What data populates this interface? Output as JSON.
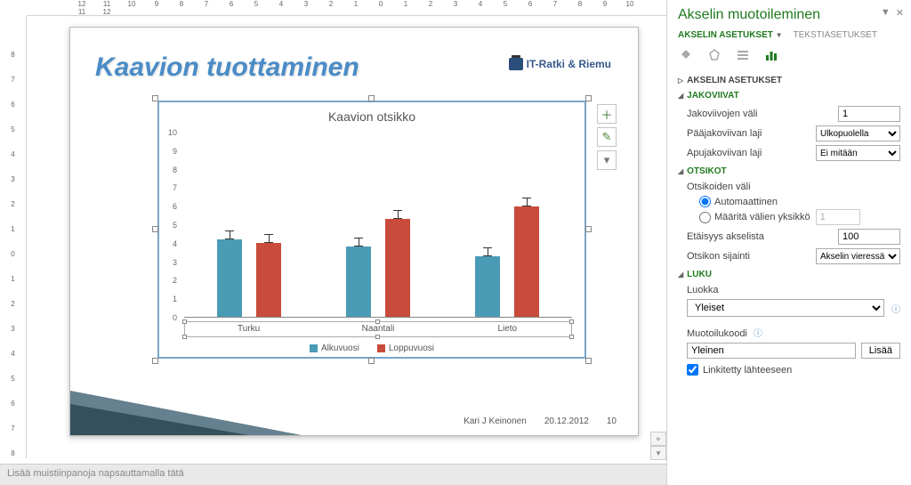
{
  "ruler_h": [
    "12",
    "11",
    "10",
    "9",
    "8",
    "7",
    "6",
    "5",
    "4",
    "3",
    "2",
    "1",
    "0",
    "1",
    "2",
    "3",
    "4",
    "5",
    "6",
    "7",
    "8",
    "9",
    "10",
    "11",
    "12"
  ],
  "ruler_v": [
    "8",
    "7",
    "6",
    "5",
    "4",
    "3",
    "2",
    "1",
    "0",
    "1",
    "2",
    "3",
    "4",
    "5",
    "6",
    "7",
    "8"
  ],
  "slide": {
    "title": "Kaavion tuottaminen",
    "brand": "IT-Ratki & Riemu",
    "footer_author": "Kari J Keinonen",
    "footer_date": "20.12.2012",
    "footer_page": "10"
  },
  "chart": {
    "title": "Kaavion otsikko",
    "ymax": 10,
    "yticks": [
      "10",
      "9",
      "8",
      "7",
      "6",
      "5",
      "4",
      "3",
      "2",
      "1",
      "0"
    ],
    "categories": [
      "Turku",
      "Naantali",
      "Lieto"
    ],
    "series": [
      {
        "name": "Alkuvuosi",
        "color": "#4a9bb5",
        "values": [
          4.2,
          3.8,
          3.3
        ]
      },
      {
        "name": "Loppuvuosi",
        "color": "#c84b3b",
        "values": [
          4.0,
          5.3,
          6.0
        ]
      }
    ],
    "legend_labels": [
      "Alkuvuosi",
      "Loppuvuosi"
    ]
  },
  "notes_placeholder": "Lisää muistiinpanoja napsauttamalla tätä",
  "sidebar": {
    "title": "Akselin muotoileminen",
    "tab_axis": "AKSELIN ASETUKSET",
    "tab_text": "TEKSTIASETUKSET",
    "sec_axis_options": "AKSELIN ASETUKSET",
    "sec_gridlines": "JAKOVIIVAT",
    "gridline_interval_label": "Jakoviivojen väli",
    "gridline_interval_value": "1",
    "major_tick_label": "Pääjakoviivan laji",
    "major_tick_value": "Ulkopuolella",
    "minor_tick_label": "Apujakoviivan laji",
    "minor_tick_value": "Ei mitään",
    "sec_labels": "OTSIKOT",
    "label_interval": "Otsikoiden väli",
    "radio_auto": "Automaattinen",
    "radio_spec": "Määritä välien yksikkö",
    "spec_value": "1",
    "dist_label": "Etäisyys akselista",
    "dist_value": "100",
    "pos_label": "Otsikon sijainti",
    "pos_value": "Akselin vieressä",
    "sec_number": "LUKU",
    "category_label": "Luokka",
    "category_value": "Yleiset",
    "format_label": "Muotoilukoodi",
    "format_value": "Yleinen",
    "add_btn": "Lisää",
    "linked_label": "Linkitetty lähteeseen"
  }
}
